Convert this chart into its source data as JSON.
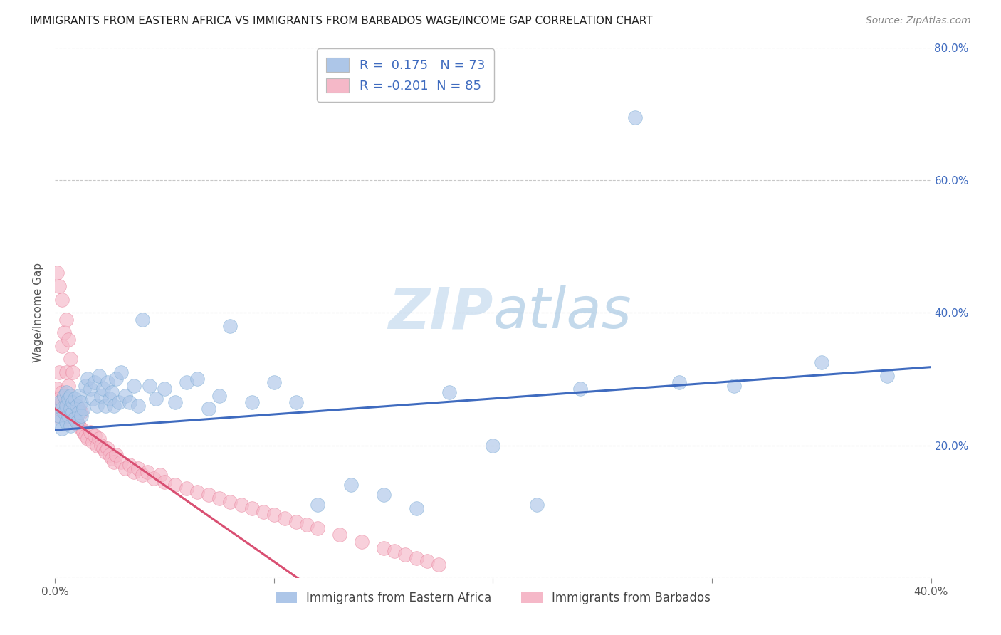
{
  "title": "IMMIGRANTS FROM EASTERN AFRICA VS IMMIGRANTS FROM BARBADOS WAGE/INCOME GAP CORRELATION CHART",
  "source": "Source: ZipAtlas.com",
  "ylabel": "Wage/Income Gap",
  "xlim": [
    0.0,
    0.4
  ],
  "ylim": [
    0.0,
    0.8
  ],
  "xticks": [
    0.0,
    0.1,
    0.2,
    0.3,
    0.4
  ],
  "yticks": [
    0.0,
    0.2,
    0.4,
    0.6,
    0.8
  ],
  "xtick_labels": [
    "0.0%",
    "",
    "",
    "",
    "40.0%"
  ],
  "ytick_labels": [
    "",
    "20.0%",
    "40.0%",
    "60.0%",
    "80.0%"
  ],
  "blue_color": "#adc6e8",
  "blue_edge_color": "#7aabd4",
  "blue_line_color": "#3f6bbf",
  "pink_color": "#f5b8c8",
  "pink_edge_color": "#e8809a",
  "pink_line_color": "#d94f72",
  "R_blue": 0.175,
  "N_blue": 73,
  "R_pink": -0.201,
  "N_pink": 85,
  "legend_label_blue": "Immigrants from Eastern Africa",
  "legend_label_pink": "Immigrants from Barbados",
  "watermark": "ZIPatlas",
  "background_color": "#ffffff",
  "grid_color": "#c8c8c8",
  "title_color": "#222222",
  "blue_line": {
    "x0": 0.0,
    "x1": 0.4,
    "y0": 0.223,
    "y1": 0.318
  },
  "pink_line": {
    "x0": 0.0,
    "x1": 0.115,
    "y0": 0.255,
    "y1": -0.01
  },
  "blue_points": {
    "x": [
      0.001,
      0.002,
      0.002,
      0.003,
      0.003,
      0.004,
      0.004,
      0.005,
      0.005,
      0.005,
      0.006,
      0.006,
      0.007,
      0.007,
      0.007,
      0.008,
      0.008,
      0.009,
      0.009,
      0.01,
      0.01,
      0.011,
      0.011,
      0.012,
      0.012,
      0.013,
      0.014,
      0.015,
      0.016,
      0.017,
      0.018,
      0.019,
      0.02,
      0.021,
      0.022,
      0.023,
      0.024,
      0.025,
      0.026,
      0.027,
      0.028,
      0.029,
      0.03,
      0.032,
      0.034,
      0.036,
      0.038,
      0.04,
      0.043,
      0.046,
      0.05,
      0.055,
      0.06,
      0.065,
      0.07,
      0.075,
      0.08,
      0.09,
      0.1,
      0.11,
      0.12,
      0.135,
      0.15,
      0.165,
      0.18,
      0.2,
      0.22,
      0.24,
      0.265,
      0.285,
      0.31,
      0.35,
      0.38
    ],
    "y": [
      0.235,
      0.265,
      0.245,
      0.255,
      0.225,
      0.275,
      0.25,
      0.26,
      0.235,
      0.28,
      0.245,
      0.27,
      0.255,
      0.23,
      0.275,
      0.25,
      0.265,
      0.24,
      0.27,
      0.235,
      0.26,
      0.25,
      0.275,
      0.245,
      0.265,
      0.255,
      0.29,
      0.3,
      0.285,
      0.27,
      0.295,
      0.26,
      0.305,
      0.275,
      0.285,
      0.26,
      0.295,
      0.27,
      0.28,
      0.26,
      0.3,
      0.265,
      0.31,
      0.275,
      0.265,
      0.29,
      0.26,
      0.39,
      0.29,
      0.27,
      0.285,
      0.265,
      0.295,
      0.3,
      0.255,
      0.275,
      0.38,
      0.265,
      0.295,
      0.265,
      0.11,
      0.14,
      0.125,
      0.105,
      0.28,
      0.2,
      0.11,
      0.285,
      0.695,
      0.295,
      0.29,
      0.325,
      0.305
    ]
  },
  "pink_points": {
    "x": [
      0.001,
      0.001,
      0.001,
      0.001,
      0.002,
      0.002,
      0.002,
      0.002,
      0.003,
      0.003,
      0.003,
      0.003,
      0.004,
      0.004,
      0.004,
      0.005,
      0.005,
      0.005,
      0.005,
      0.006,
      0.006,
      0.006,
      0.006,
      0.007,
      0.007,
      0.007,
      0.008,
      0.008,
      0.008,
      0.009,
      0.009,
      0.01,
      0.01,
      0.011,
      0.011,
      0.012,
      0.012,
      0.013,
      0.014,
      0.015,
      0.016,
      0.017,
      0.018,
      0.019,
      0.02,
      0.021,
      0.022,
      0.023,
      0.024,
      0.025,
      0.026,
      0.027,
      0.028,
      0.03,
      0.032,
      0.034,
      0.036,
      0.038,
      0.04,
      0.042,
      0.045,
      0.048,
      0.05,
      0.055,
      0.06,
      0.065,
      0.07,
      0.075,
      0.08,
      0.085,
      0.09,
      0.095,
      0.1,
      0.105,
      0.11,
      0.115,
      0.12,
      0.13,
      0.14,
      0.15,
      0.155,
      0.16,
      0.165,
      0.17,
      0.175
    ],
    "y": [
      0.26,
      0.245,
      0.285,
      0.46,
      0.255,
      0.27,
      0.31,
      0.44,
      0.265,
      0.28,
      0.35,
      0.42,
      0.255,
      0.275,
      0.37,
      0.25,
      0.265,
      0.31,
      0.39,
      0.24,
      0.26,
      0.29,
      0.36,
      0.245,
      0.265,
      0.33,
      0.245,
      0.26,
      0.31,
      0.24,
      0.255,
      0.235,
      0.26,
      0.23,
      0.255,
      0.225,
      0.25,
      0.22,
      0.215,
      0.21,
      0.22,
      0.205,
      0.215,
      0.2,
      0.21,
      0.2,
      0.195,
      0.19,
      0.195,
      0.185,
      0.18,
      0.175,
      0.185,
      0.175,
      0.165,
      0.17,
      0.16,
      0.165,
      0.155,
      0.16,
      0.15,
      0.155,
      0.145,
      0.14,
      0.135,
      0.13,
      0.125,
      0.12,
      0.115,
      0.11,
      0.105,
      0.1,
      0.095,
      0.09,
      0.085,
      0.08,
      0.075,
      0.065,
      0.055,
      0.045,
      0.04,
      0.035,
      0.03,
      0.025,
      0.02
    ]
  }
}
